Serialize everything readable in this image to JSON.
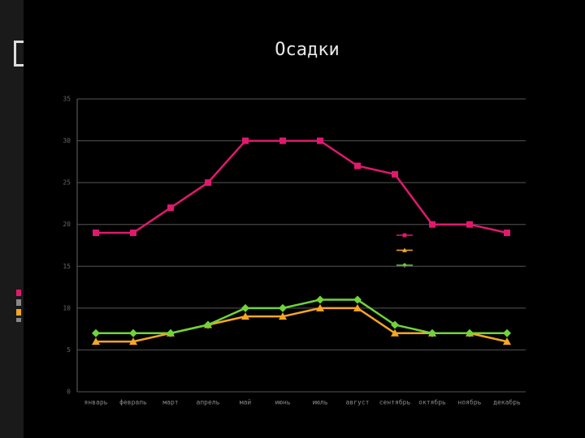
{
  "chart_data": {
    "type": "line",
    "title": "Осадки",
    "categories": [
      "январь",
      "февраль",
      "март",
      "апрель",
      "май",
      "июнь",
      "июль",
      "август",
      "сентябрь",
      "октябрь",
      "ноябрь",
      "декабрь"
    ],
    "series": [
      {
        "color": "#e0196e",
        "marker": "square",
        "values": [
          19,
          19,
          22,
          25,
          30,
          30,
          30,
          27,
          26,
          20,
          20,
          19
        ]
      },
      {
        "color": "#f5a623",
        "marker": "triangle",
        "values": [
          6,
          6,
          7,
          8,
          9,
          9,
          10,
          10,
          7,
          7,
          7,
          6
        ]
      },
      {
        "color": "#6fd43a",
        "marker": "diamond",
        "values": [
          7,
          7,
          7,
          8,
          10,
          10,
          11,
          11,
          8,
          7,
          7,
          7
        ]
      }
    ],
    "ylim": [
      0,
      35
    ],
    "yticks": [
      0,
      5,
      10,
      15,
      20,
      25,
      30,
      35
    ],
    "grid": true
  }
}
